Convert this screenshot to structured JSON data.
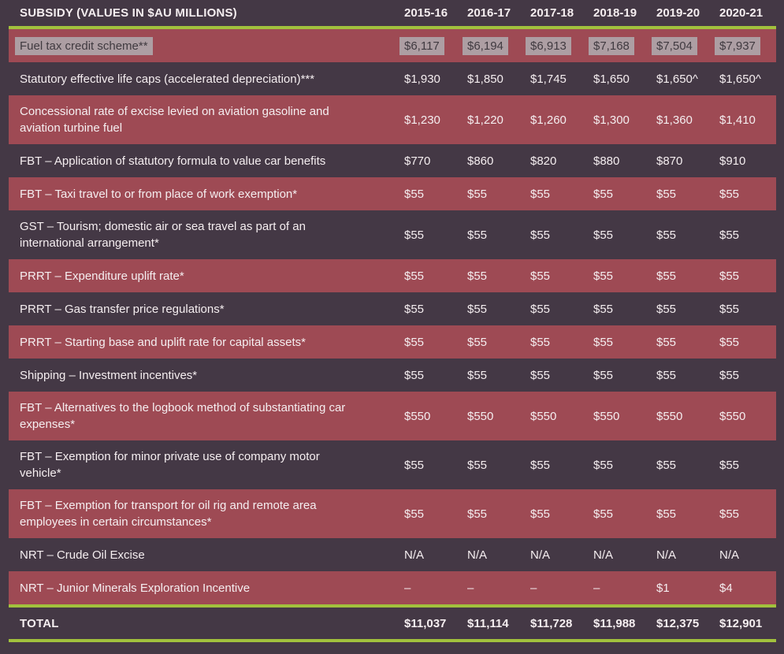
{
  "colors": {
    "page_background": "#443845",
    "row_highlight_maroon": "#9e4a54",
    "accent_line_green": "#a2c13d",
    "body_text": "#f5eef0",
    "text_selection_background": "#ad9ea3",
    "text_selection_text": "#403a40"
  },
  "chart_data": {
    "type": "table",
    "title": "SUBSIDY (VALUES IN $AU MILLIONS)",
    "year_columns": [
      "2015-16",
      "2016-17",
      "2017-18",
      "2018-19",
      "2019-20",
      "2020-21"
    ],
    "rows": [
      {
        "label": "Fuel tax credit scheme**",
        "values": [
          "$6,117",
          "$6,194",
          "$6,913",
          "$7,168",
          "$7,504",
          "$7,937"
        ],
        "text_selected": true
      },
      {
        "label": "Statutory effective life caps (accelerated depreciation)***",
        "values": [
          "$1,930",
          "$1,850",
          "$1,745",
          "$1,650",
          "$1,650^",
          "$1,650^"
        ]
      },
      {
        "label": "Concessional rate of excise levied on aviation gasoline and\naviation turbine fuel",
        "values": [
          "$1,230",
          "$1,220",
          "$1,260",
          "$1,300",
          "$1,360",
          "$1,410"
        ]
      },
      {
        "label": "FBT – Application of statutory formula to value car benefits",
        "values": [
          "$770",
          "$860",
          "$820",
          "$880",
          "$870",
          "$910"
        ]
      },
      {
        "label": "FBT – Taxi travel to or from place of work exemption*",
        "values": [
          "$55",
          "$55",
          "$55",
          "$55",
          "$55",
          "$55"
        ]
      },
      {
        "label": "GST – Tourism; domestic air or sea travel as part of an\ninternational arrangement*",
        "values": [
          "$55",
          "$55",
          "$55",
          "$55",
          "$55",
          "$55"
        ]
      },
      {
        "label": "PRRT – Expenditure uplift rate*",
        "values": [
          "$55",
          "$55",
          "$55",
          "$55",
          "$55",
          "$55"
        ]
      },
      {
        "label": "PRRT – Gas transfer price regulations*",
        "values": [
          "$55",
          "$55",
          "$55",
          "$55",
          "$55",
          "$55"
        ]
      },
      {
        "label": "PRRT – Starting base and uplift rate for capital assets*",
        "values": [
          "$55",
          "$55",
          "$55",
          "$55",
          "$55",
          "$55"
        ]
      },
      {
        "label": "Shipping – Investment incentives*",
        "values": [
          "$55",
          "$55",
          "$55",
          "$55",
          "$55",
          "$55"
        ]
      },
      {
        "label": "FBT – Alternatives to the logbook method of substantiating car\nexpenses*",
        "values": [
          "$550",
          "$550",
          "$550",
          "$550",
          "$550",
          "$550"
        ]
      },
      {
        "label": "FBT – Exemption for minor private use of company motor\nvehicle*",
        "values": [
          "$55",
          "$55",
          "$55",
          "$55",
          "$55",
          "$55"
        ]
      },
      {
        "label": "FBT – Exemption for transport for oil rig and remote area\nemployees in certain circumstances*",
        "values": [
          "$55",
          "$55",
          "$55",
          "$55",
          "$55",
          "$55"
        ]
      },
      {
        "label": "NRT – Crude Oil Excise",
        "values": [
          "N/A",
          "N/A",
          "N/A",
          "N/A",
          "N/A",
          "N/A"
        ]
      },
      {
        "label": "NRT – Junior Minerals Exploration Incentive",
        "values": [
          "–",
          "–",
          "–",
          "–",
          "$1",
          "$4"
        ]
      }
    ],
    "total_row": {
      "label": "TOTAL",
      "values": [
        "$11,037",
        "$11,114",
        "$11,728",
        "$11,988",
        "$12,375",
        "$12,901"
      ]
    }
  }
}
